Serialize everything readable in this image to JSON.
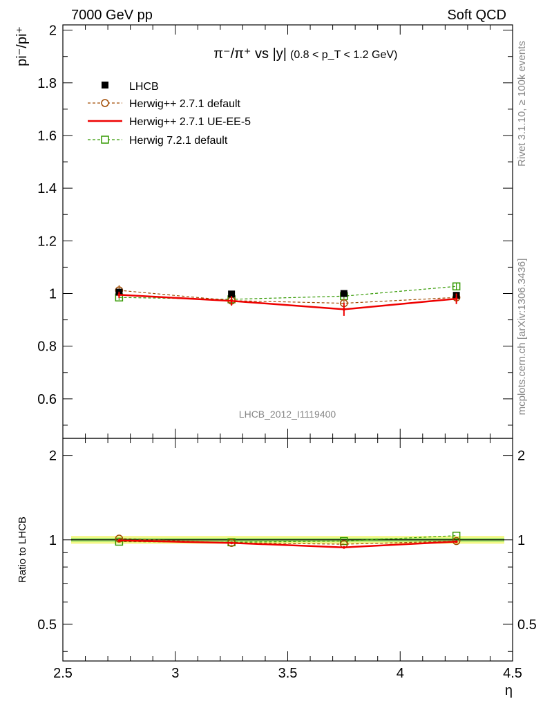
{
  "header": {
    "left": "7000 GeV pp",
    "right": "Soft QCD"
  },
  "side": {
    "rivet": "Rivet 3.1.10, ≥ 100k events",
    "mcplots": "mcplots.cern.ch [arXiv:1306.3436]"
  },
  "analysis_id": "LHCB_2012_I1119400",
  "chart_data": [
    {
      "type": "line",
      "title": "π⁻/π⁺ vs |y|",
      "title_cut": "(0.8 < p_T < 1.2 GeV)",
      "ylabel": "pi⁻/pi⁺",
      "xlabel": "η",
      "xlim": [
        2.5,
        4.5
      ],
      "ylim": [
        0.45,
        2.02
      ],
      "xticks": [
        "2.5",
        "3",
        "3.5",
        "4",
        "4.5"
      ],
      "yticks": [
        "0.6",
        "0.8",
        "1",
        "1.2",
        "1.4",
        "1.6",
        "1.8",
        "2"
      ],
      "legend_position": "top-left",
      "x": [
        2.75,
        3.25,
        3.75,
        4.25
      ],
      "series": [
        {
          "name": "LHCB",
          "style": "data",
          "color": "#000000",
          "values": [
            1.005,
            0.998,
            1.0,
            0.993
          ],
          "errors": [
            0.01,
            0.008,
            0.01,
            0.01
          ]
        },
        {
          "name": "Herwig++ 2.7.1 default",
          "style": "circle-dashed",
          "color": "#a04a00",
          "values": [
            1.012,
            0.973,
            0.963,
            0.985
          ],
          "errors": [
            0.02,
            0.01,
            0.012,
            0.012
          ]
        },
        {
          "name": "Herwig++ 2.7.1 UE-EE-5",
          "style": "solid",
          "color": "#ee0000",
          "values": [
            0.995,
            0.972,
            0.94,
            0.98
          ],
          "errors": [
            0.012,
            0.018,
            0.025,
            0.02
          ]
        },
        {
          "name": "Herwig 7.2.1 default",
          "style": "square-dashed",
          "color": "#339900",
          "values": [
            0.985,
            0.978,
            0.99,
            1.027
          ],
          "errors": [
            0.01,
            0.01,
            0.01,
            0.015
          ]
        }
      ]
    },
    {
      "type": "line",
      "ylabel": "Ratio to LHCB",
      "xlabel": "η",
      "xlim": [
        2.5,
        4.5
      ],
      "ylim": [
        0.37,
        2.3
      ],
      "log_y": true,
      "yticks": [
        "0.5",
        "1",
        "2"
      ],
      "band": {
        "low": 0.985,
        "high": 1.015
      },
      "x": [
        2.75,
        3.25,
        3.75,
        4.25
      ],
      "series": [
        {
          "name": "Herwig++ 2.7.1 default",
          "style": "circle-dashed",
          "color": "#a04a00",
          "values": [
            1.01,
            0.975,
            0.965,
            0.99
          ]
        },
        {
          "name": "Herwig++ 2.7.1 UE-EE-5",
          "style": "solid",
          "color": "#ee0000",
          "values": [
            0.995,
            0.975,
            0.94,
            0.985
          ]
        },
        {
          "name": "Herwig 7.2.1 default",
          "style": "square-dashed",
          "color": "#339900",
          "values": [
            0.985,
            0.98,
            0.99,
            1.035
          ]
        }
      ]
    }
  ]
}
